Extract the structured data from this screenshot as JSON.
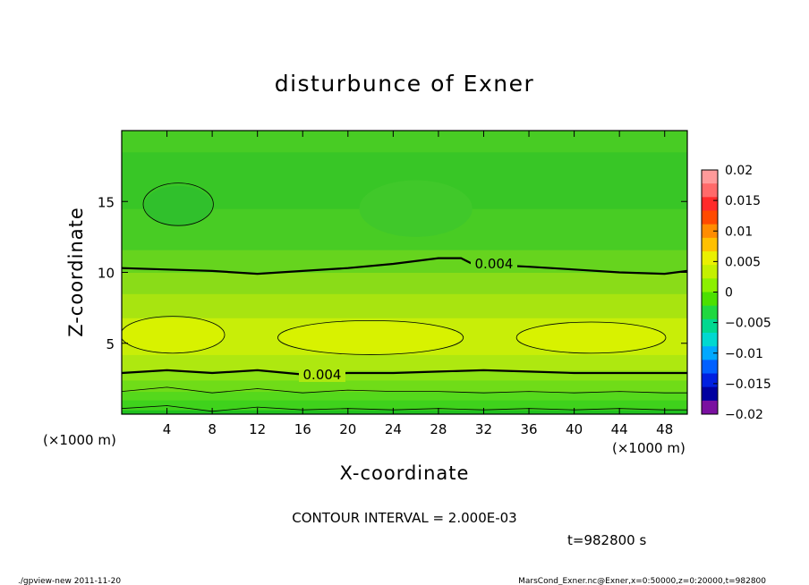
{
  "chart_data": {
    "type": "heatmap",
    "title": "disturbunce of Exner",
    "xlabel": "X-coordinate",
    "ylabel": "Z-coordinate",
    "x_unit": "(×1000 m)",
    "x_unit_right": "(×1000 m)",
    "xlim": [
      0,
      50
    ],
    "ylim": [
      0,
      20
    ],
    "x_ticks": [
      4,
      8,
      12,
      16,
      20,
      24,
      28,
      32,
      36,
      40,
      44,
      48
    ],
    "y_ticks": [
      5,
      10,
      15
    ],
    "contour_interval_text": "CONTOUR INTERVAL = 2.000E-03",
    "time_text": "t=982800 s",
    "contour_labels": [
      "0.004",
      "0.004"
    ],
    "colorbar": {
      "ticks": [
        "0.02",
        "0.015",
        "0.01",
        "0.005",
        "0",
        "−0.005",
        "−0.01",
        "−0.015",
        "−0.02"
      ],
      "levels": [
        0.02,
        0.015,
        0.01,
        0.005,
        0,
        -0.005,
        -0.01,
        -0.015,
        -0.02
      ],
      "colors": [
        "#ff9a9a",
        "#ff6a6a",
        "#ff2a2a",
        "#ff4a00",
        "#ff8c00",
        "#ffc000",
        "#eaf000",
        "#c4f000",
        "#8cf000",
        "#4ce000",
        "#20d840",
        "#00d890",
        "#00d8d0",
        "#00a8ff",
        "#0060ff",
        "#0020e0",
        "#0000a0",
        "#7a10a0"
      ]
    },
    "bands_z": [
      {
        "z": [
          0.0,
          0.3
        ],
        "color": "#20c020"
      },
      {
        "z": [
          0.3,
          1.0
        ],
        "color": "#3fd21c"
      },
      {
        "z": [
          1.0,
          1.6
        ],
        "color": "#55d81c"
      },
      {
        "z": [
          1.6,
          2.4
        ],
        "color": "#70dc18"
      },
      {
        "z": [
          2.4,
          3.1
        ],
        "color": "#8ce214"
      },
      {
        "z": [
          3.1,
          4.2
        ],
        "color": "#aee810"
      },
      {
        "z": [
          4.2,
          6.8
        ],
        "color": "#c8ee08"
      },
      {
        "z": [
          6.8,
          8.5
        ],
        "color": "#a8e410"
      },
      {
        "z": [
          8.5,
          10.0
        ],
        "color": "#8adc18"
      },
      {
        "z": [
          10.0,
          11.6
        ],
        "color": "#66d41e"
      },
      {
        "z": [
          11.6,
          14.5
        ],
        "color": "#48cc24"
      },
      {
        "z": [
          14.5,
          18.5
        ],
        "color": "#38c626"
      },
      {
        "z": [
          18.5,
          20.0
        ],
        "color": "#48cc24"
      }
    ],
    "blobs": [
      {
        "cx": 4.5,
        "cz": 5.6,
        "rx": 4.5,
        "rz": 1.2,
        "color": "#d8f200"
      },
      {
        "cx": 22,
        "cz": 5.4,
        "rx": 8,
        "rz": 1.1,
        "color": "#d8f200"
      },
      {
        "cx": 41.5,
        "cz": 5.4,
        "rx": 6.5,
        "rz": 1.0,
        "color": "#d8f200"
      },
      {
        "cx": 5,
        "cz": 14.7,
        "rx": 3,
        "rz": 1.4,
        "color": "#30c02c"
      },
      {
        "cx": 26,
        "cz": 14.5,
        "rx": 5,
        "rz": 2.0,
        "color": "#40c82a"
      }
    ],
    "contours": [
      {
        "thick": true,
        "points": [
          [
            0,
            10.3
          ],
          [
            4,
            10.2
          ],
          [
            8,
            10.1
          ],
          [
            12,
            9.9
          ],
          [
            16,
            10.1
          ],
          [
            20,
            10.3
          ],
          [
            24,
            10.6
          ],
          [
            28,
            11.0
          ],
          [
            30,
            11.0
          ],
          [
            31,
            10.6
          ],
          [
            36,
            10.4
          ],
          [
            40,
            10.2
          ],
          [
            44,
            10.0
          ],
          [
            48,
            9.9
          ],
          [
            50,
            10.1
          ]
        ]
      },
      {
        "thick": true,
        "points": [
          [
            0,
            2.9
          ],
          [
            4,
            3.1
          ],
          [
            8,
            2.9
          ],
          [
            12,
            3.1
          ],
          [
            16,
            2.8
          ],
          [
            20,
            2.9
          ],
          [
            24,
            2.9
          ],
          [
            28,
            3.0
          ],
          [
            32,
            3.1
          ],
          [
            36,
            3.0
          ],
          [
            40,
            2.9
          ],
          [
            44,
            2.9
          ],
          [
            48,
            2.9
          ],
          [
            50,
            2.9
          ]
        ]
      },
      {
        "thick": false,
        "points": [
          [
            0,
            0.4
          ],
          [
            4,
            0.6
          ],
          [
            8,
            0.2
          ],
          [
            12,
            0.5
          ],
          [
            16,
            0.3
          ],
          [
            20,
            0.4
          ],
          [
            24,
            0.3
          ],
          [
            28,
            0.4
          ],
          [
            32,
            0.3
          ],
          [
            36,
            0.4
          ],
          [
            40,
            0.3
          ],
          [
            44,
            0.4
          ],
          [
            48,
            0.3
          ],
          [
            50,
            0.3
          ]
        ]
      },
      {
        "thick": false,
        "points": [
          [
            0,
            1.6
          ],
          [
            4,
            1.9
          ],
          [
            8,
            1.5
          ],
          [
            12,
            1.8
          ],
          [
            16,
            1.5
          ],
          [
            20,
            1.7
          ],
          [
            24,
            1.6
          ],
          [
            28,
            1.6
          ],
          [
            32,
            1.5
          ],
          [
            36,
            1.6
          ],
          [
            40,
            1.5
          ],
          [
            44,
            1.6
          ],
          [
            48,
            1.5
          ],
          [
            50,
            1.5
          ]
        ]
      }
    ],
    "loops": [
      {
        "cx": 4.5,
        "cz": 5.6,
        "rx": 4.6,
        "rz": 1.3
      },
      {
        "cx": 22,
        "cz": 5.4,
        "rx": 8.2,
        "rz": 1.2
      },
      {
        "cx": 41.5,
        "cz": 5.4,
        "rx": 6.6,
        "rz": 1.1
      },
      {
        "cx": 5,
        "cz": 14.8,
        "rx": 3.1,
        "rz": 1.5
      }
    ]
  },
  "footer": {
    "left": "./gpview-new  2011-11-20",
    "right": "MarsCond_Exner.nc@Exner,x=0:50000,z=0:20000,t=982800"
  }
}
